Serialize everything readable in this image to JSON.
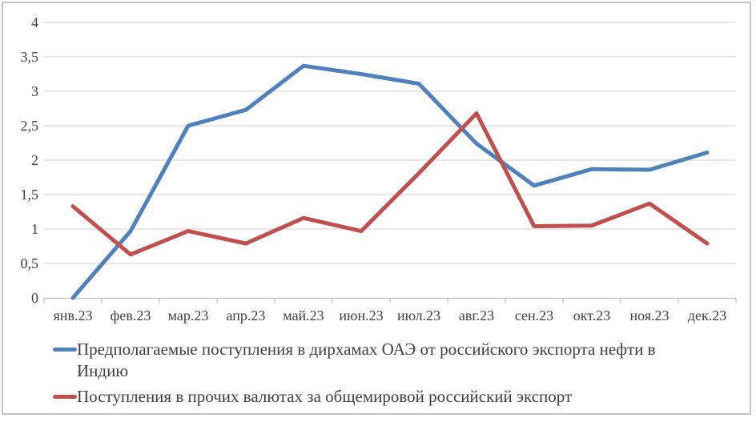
{
  "chart_data": {
    "type": "line",
    "title": "",
    "categories": [
      "янв.23",
      "фев.23",
      "мар.23",
      "апр.23",
      "май.23",
      "июн.23",
      "июл.23",
      "авг.23",
      "сен.23",
      "окт.23",
      "ноя.23",
      "дек.23"
    ],
    "series": [
      {
        "name": "Предполагаемые поступления в дирхамах ОАЭ от российского экспорта нефти в Индию",
        "color": "#4F81BD",
        "values": [
          0,
          0.97,
          2.5,
          2.73,
          3.37,
          3.25,
          3.11,
          2.24,
          1.63,
          1.87,
          1.86,
          2.11
        ]
      },
      {
        "name": "Поступления в прочих валютах за общемировой российский экспорт",
        "color": "#C0504D",
        "values": [
          1.33,
          0.63,
          0.97,
          0.79,
          1.16,
          0.97,
          1.81,
          2.68,
          1.04,
          1.05,
          1.37,
          0.79
        ]
      }
    ],
    "xlabel": "",
    "ylabel": "",
    "ylim": [
      0,
      4
    ],
    "ytick_step": 0.5,
    "ytick_labels": [
      "0",
      "0,5",
      "1",
      "1,5",
      "2",
      "2,5",
      "3",
      "3,5",
      "4"
    ],
    "grid": true,
    "legend_position": "bottom-left"
  },
  "colors": {
    "background": "#FFFFFF",
    "frame_border": "#C3C3C3",
    "gridline": "#D9D9D9",
    "axis_line": "#BFBFBF",
    "axis_text": "#404040",
    "legend_text": "#3F3F3F"
  }
}
